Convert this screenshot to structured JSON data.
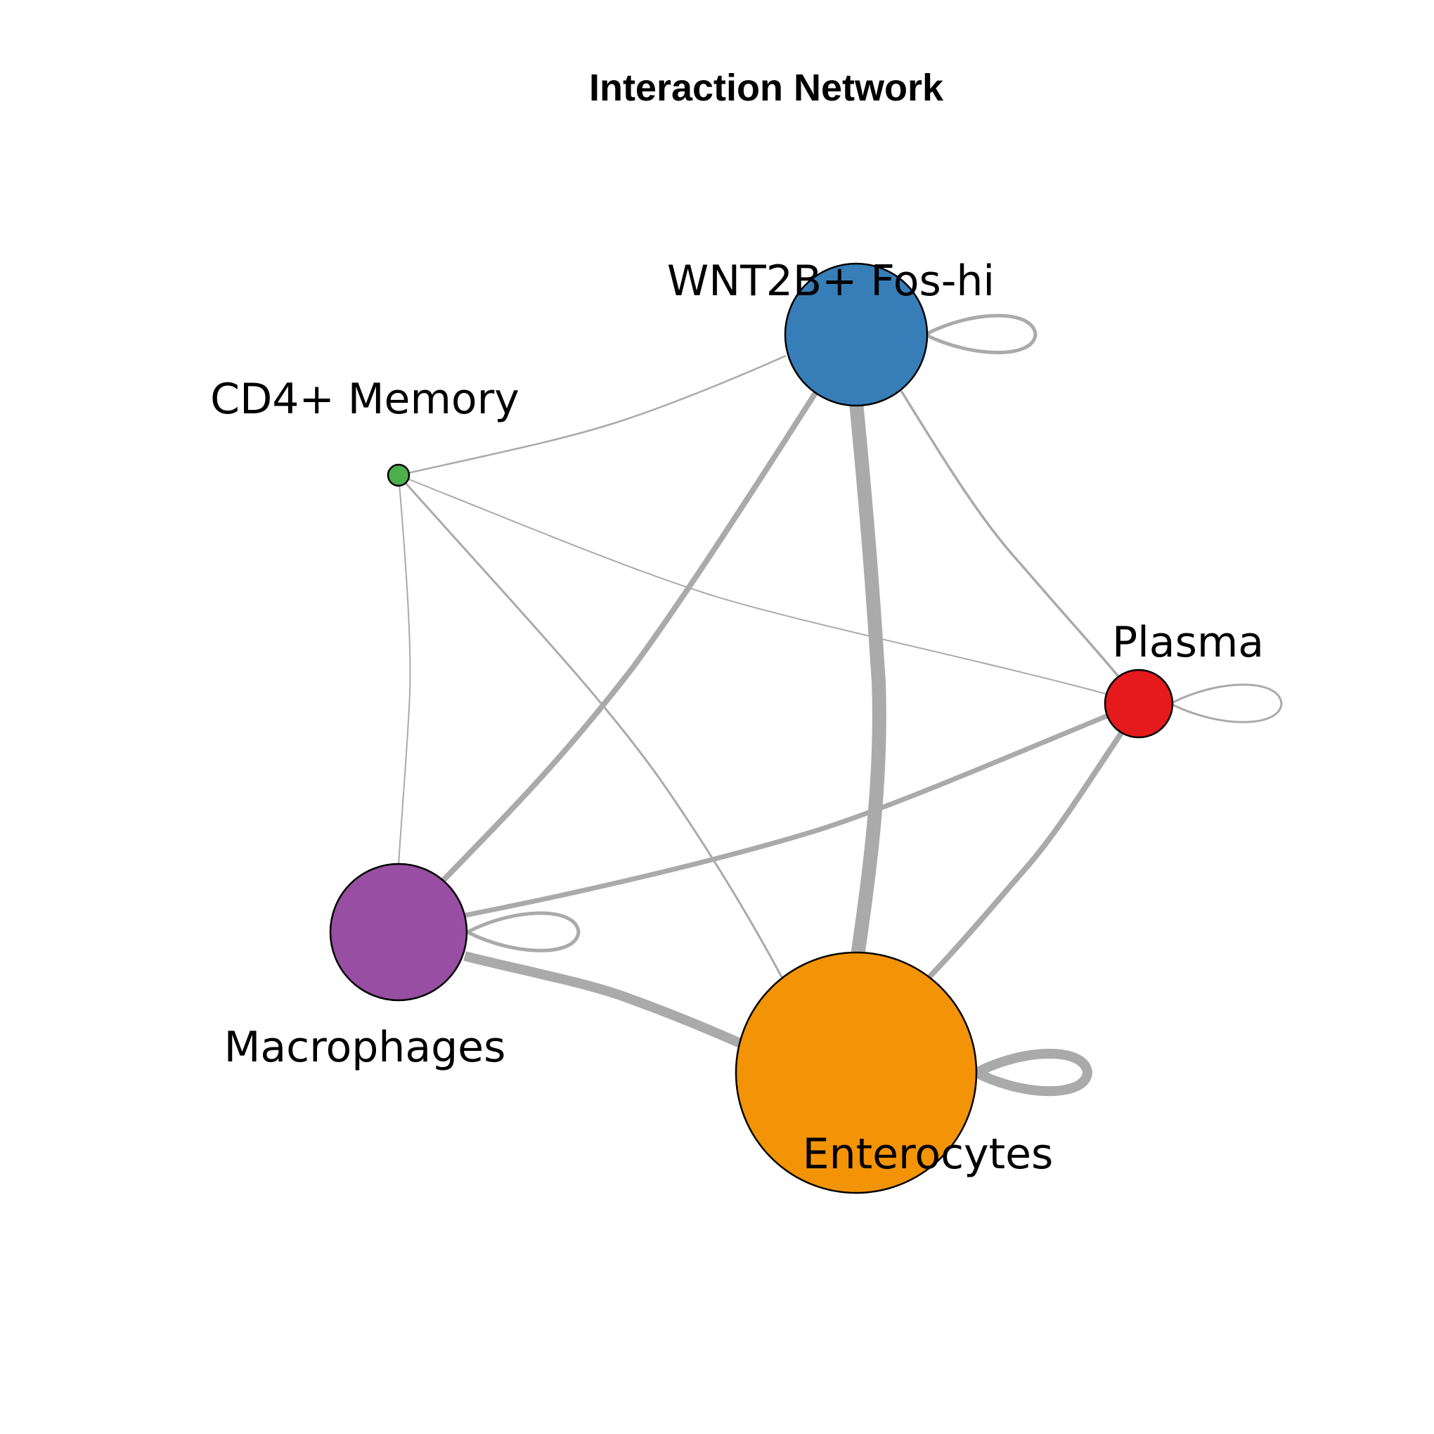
{
  "title": "Interaction Network",
  "network": {
    "nodes": [
      {
        "id": "wnt2b",
        "label": "WNT2B+ Fos-hi",
        "color": "#377eb8"
      },
      {
        "id": "cd4",
        "label": "CD4+ Memory",
        "color": "#4daf4a"
      },
      {
        "id": "plasma",
        "label": "Plasma",
        "color": "#e41a1c"
      },
      {
        "id": "macro",
        "label": "Macrophages",
        "color": "#984ea3"
      },
      {
        "id": "entero",
        "label": "Enterocytes",
        "color": "#f39306"
      }
    ],
    "edges": [
      {
        "source": "wnt2b",
        "target": "wnt2b",
        "loop": true
      },
      {
        "source": "plasma",
        "target": "plasma",
        "loop": true
      },
      {
        "source": "macro",
        "target": "macro",
        "loop": true
      },
      {
        "source": "entero",
        "target": "entero",
        "loop": true
      },
      {
        "source": "cd4",
        "target": "wnt2b"
      },
      {
        "source": "cd4",
        "target": "plasma"
      },
      {
        "source": "cd4",
        "target": "macro"
      },
      {
        "source": "cd4",
        "target": "entero"
      },
      {
        "source": "wnt2b",
        "target": "plasma"
      },
      {
        "source": "wnt2b",
        "target": "macro"
      },
      {
        "source": "wnt2b",
        "target": "entero"
      },
      {
        "source": "plasma",
        "target": "macro"
      },
      {
        "source": "plasma",
        "target": "entero"
      },
      {
        "source": "macro",
        "target": "entero"
      }
    ],
    "edge_color": "#aaaaaa"
  }
}
